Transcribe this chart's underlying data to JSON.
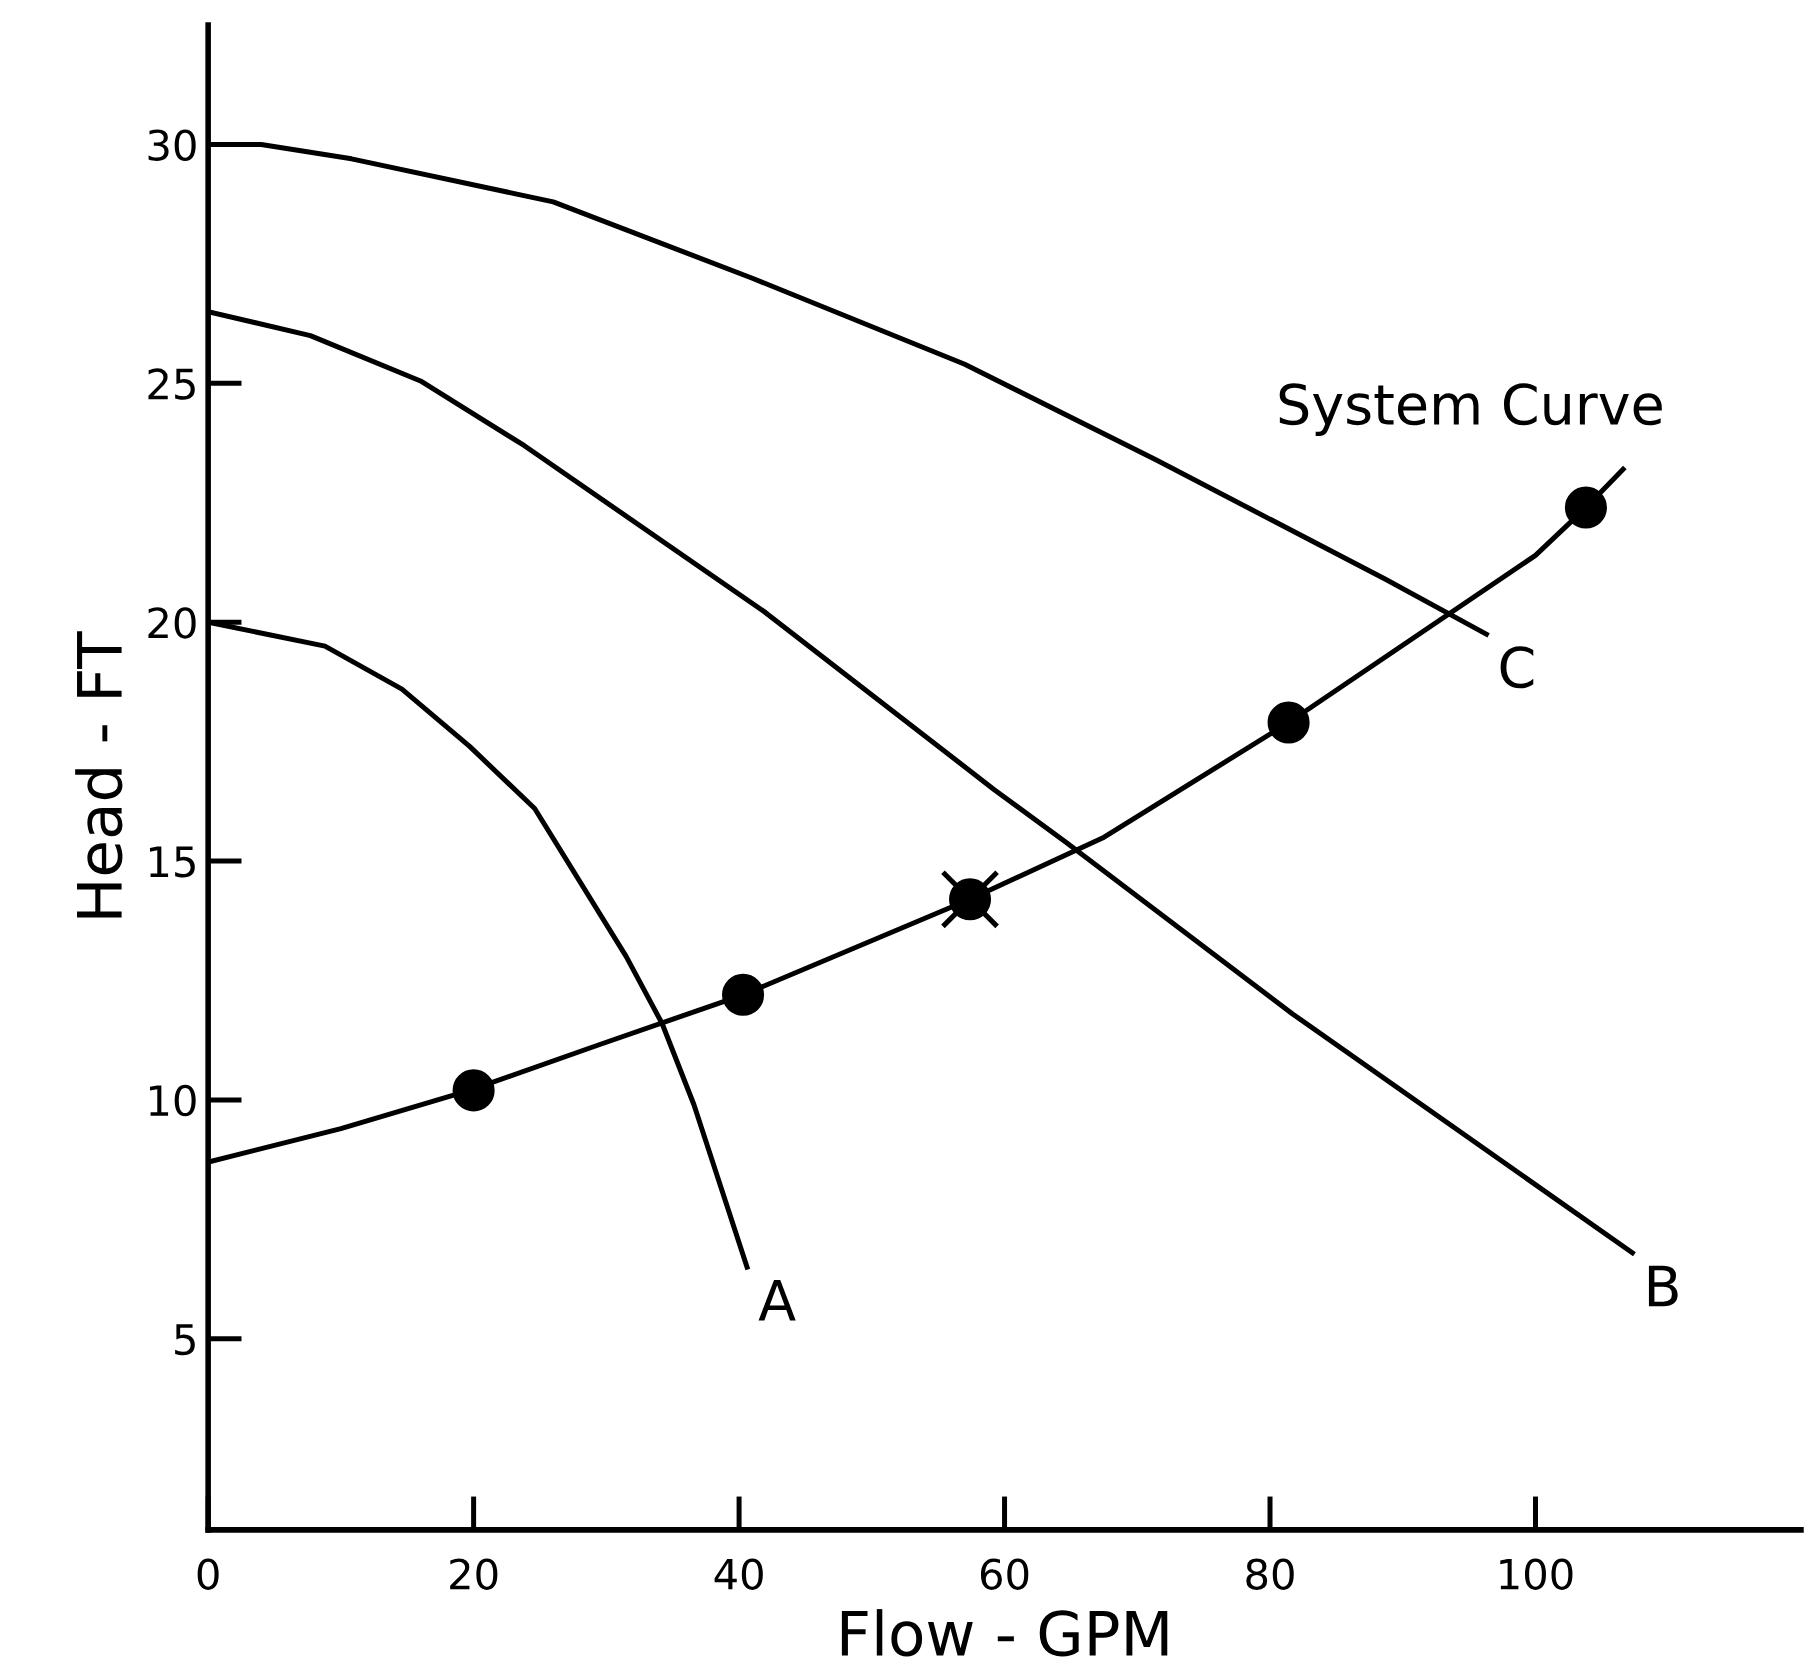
{
  "chart_data": {
    "type": "line",
    "xlabel": "Flow - GPM",
    "ylabel": "Head - FT",
    "xlim": [
      0,
      120
    ],
    "ylim": [
      1,
      32.5
    ],
    "xticks": [
      0,
      20,
      40,
      60,
      80,
      100
    ],
    "yticks": [
      5,
      10,
      15,
      20,
      25,
      30
    ],
    "grid": false,
    "legend": false,
    "marker": "none",
    "line_style": "solid",
    "series": [
      {
        "name": "A",
        "color": "#000000",
        "x": [
          0,
          8.8,
          14.6,
          19.7,
          24.6,
          31.5,
          34.2,
          36.6,
          40.6
        ],
        "values": [
          20,
          19.5,
          18.6,
          17.4,
          16.1,
          13.0,
          11.6,
          9.9,
          6.5
        ]
      },
      {
        "name": "B",
        "color": "#000000",
        "x": [
          0,
          7.7,
          16,
          23.8,
          42,
          59.2,
          64.6,
          81.7,
          107.3
        ],
        "values": [
          26.5,
          26.0,
          25.05,
          23.7,
          20.2,
          16.5,
          15.4,
          11.8,
          6.8
        ]
      },
      {
        "name": "C",
        "color": "#000000",
        "x": [
          0,
          4,
          10.8,
          26,
          41,
          57,
          71.4,
          88.7,
          96.3
        ],
        "values": [
          30,
          30,
          29.7,
          28.8,
          27.2,
          25.4,
          23.4,
          20.9,
          19.75
        ]
      },
      {
        "name": "System Curve",
        "color": "#000000",
        "x": [
          0,
          10,
          19.7,
          29.4,
          40.3,
          57.4,
          67.5,
          81.4,
          100,
          103.8,
          106.6
        ],
        "values": [
          8.7,
          9.4,
          10.2,
          11.15,
          12.2,
          14.2,
          15.5,
          17.9,
          21.4,
          22.4,
          23.2
        ]
      },
      {
        "type": "scatter",
        "marker": "circle",
        "color": "#000000",
        "x": [
          20,
          40.3,
          57.4,
          81.4,
          103.8
        ],
        "values": [
          10.2,
          12.2,
          14.2,
          17.9,
          22.4
        ]
      },
      {
        "type": "scatter",
        "marker": "cross",
        "color": "#000000",
        "x": [
          57.4
        ],
        "values": [
          14.2
        ]
      }
    ]
  }
}
